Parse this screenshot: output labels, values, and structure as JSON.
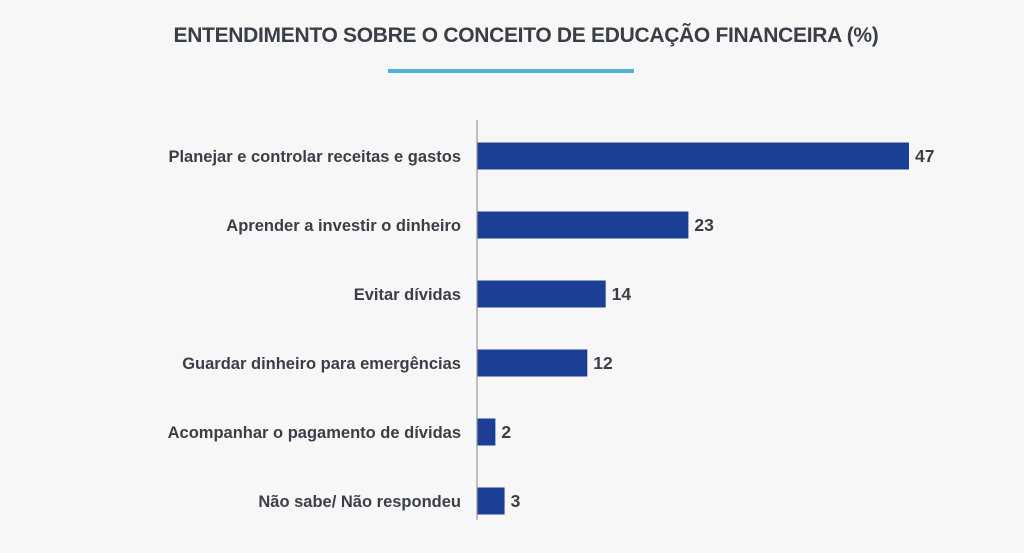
{
  "chart_data": {
    "type": "bar",
    "orientation": "horizontal",
    "title": "ENTENDIMENTO SOBRE O CONCEITO DE  EDUCAÇÃO FINANCEIRA (%)",
    "categories": [
      "Planejar e controlar  receitas e gastos",
      "Aprender a investir o dinheiro",
      "Evitar dívidas",
      "Guardar dinheiro para emergências",
      "Acompanhar o pagamento de dívidas",
      "Não sabe/ Não respondeu"
    ],
    "values": [
      47,
      23,
      14,
      12,
      2,
      3
    ],
    "xlim": [
      0,
      50
    ],
    "grid": false,
    "legend": "none",
    "colors": {
      "bar": "#1b3f94",
      "axis": "#9a9a9a",
      "text": "#3a3f47",
      "accent": "#4fb3d9",
      "background": "#f7f7f7"
    }
  }
}
